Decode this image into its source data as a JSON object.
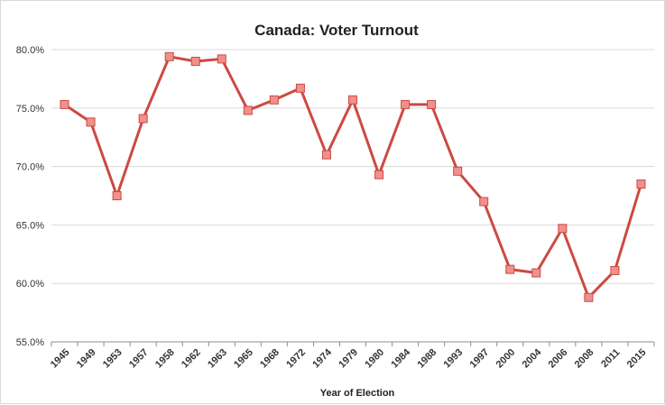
{
  "chart_data": {
    "type": "line",
    "title": "Canada: Voter Turnout",
    "xlabel": "Year of Election",
    "ylabel": "",
    "ylim": [
      55,
      80
    ],
    "yticks": [
      "55.0%",
      "60.0%",
      "65.0%",
      "70.0%",
      "75.0%",
      "80.0%"
    ],
    "ytick_values": [
      55,
      60,
      65,
      70,
      75,
      80
    ],
    "grid": true,
    "legend": "none",
    "categories": [
      "1945",
      "1949",
      "1953",
      "1957",
      "1958",
      "1962",
      "1963",
      "1965",
      "1968",
      "1972",
      "1974",
      "1979",
      "1980",
      "1984",
      "1988",
      "1993",
      "1997",
      "2000",
      "2004",
      "2006",
      "2008",
      "2011",
      "2015"
    ],
    "series": [
      {
        "values": [
          75.3,
          73.8,
          67.5,
          74.1,
          79.4,
          79.0,
          79.2,
          74.8,
          75.7,
          76.7,
          71.0,
          75.7,
          69.3,
          75.3,
          75.3,
          69.6,
          67.0,
          61.2,
          60.9,
          64.7,
          58.8,
          61.1,
          68.5
        ],
        "line_color": "#cc4a43",
        "marker_color": "#f0908c"
      }
    ]
  }
}
